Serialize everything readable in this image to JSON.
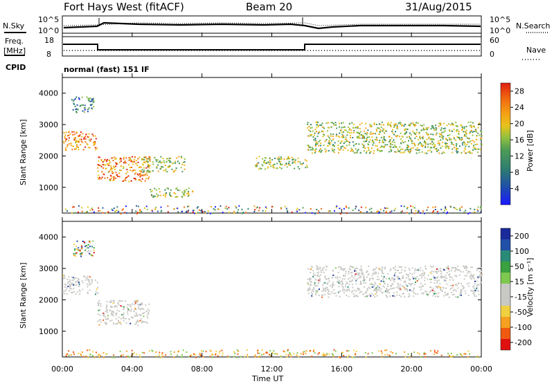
{
  "header": {
    "radar_title": "Fort Hays West (fitACF)",
    "beam": "Beam 20",
    "date": "31/Aug/2015"
  },
  "strip_panels": {
    "nsky_label": "N.Sky",
    "nsky_ticks": [
      "10^5",
      "10^0"
    ],
    "nsearch_label": "N.Search",
    "nsearch_ticks": [
      "10^5",
      "10^0"
    ],
    "freq_label": "Freq.",
    "freq_unit": "[MHz]",
    "freq_ticks": [
      "18",
      "8"
    ],
    "nave_label": "Nave",
    "nave_ticks": [
      "60",
      "0"
    ],
    "cpid_label": "CPID",
    "cpid_value": "normal (fast) 151 IF"
  },
  "chart_data": [
    {
      "type": "heatmap",
      "name": "power",
      "ylabel": "Slant Range [km]",
      "yticks": [
        "4000",
        "3000",
        "2000",
        "1000"
      ],
      "ylim": [
        180,
        4500
      ],
      "colorbar": {
        "label": "Power [dB]",
        "ticks": [
          "28",
          "24",
          "20",
          "16",
          "12",
          "8",
          "4"
        ],
        "range": [
          0,
          30
        ],
        "colors": [
          "#1a1aff",
          "#1f4fa8",
          "#2f7f6f",
          "#4d9b55",
          "#90c040",
          "#e8c21a",
          "#f5a015",
          "#f06a10",
          "#e02010"
        ]
      },
      "regions": [
        {
          "t": [
            0,
            2
          ],
          "r": [
            2200,
            2800
          ],
          "level": "high"
        },
        {
          "t": [
            2,
            5
          ],
          "r": [
            1200,
            2000
          ],
          "level": "high"
        },
        {
          "t": [
            0.5,
            1.8
          ],
          "r": [
            3400,
            3900
          ],
          "level": "low"
        },
        {
          "t": [
            4.5,
            7
          ],
          "r": [
            1500,
            2000
          ],
          "level": "mid"
        },
        {
          "t": [
            5,
            7.5
          ],
          "r": [
            700,
            1000
          ],
          "level": "mid"
        },
        {
          "t": [
            14,
            24
          ],
          "r": [
            2100,
            3100
          ],
          "level": "mid"
        },
        {
          "t": [
            11,
            14
          ],
          "r": [
            1600,
            2000
          ],
          "level": "mid"
        }
      ]
    },
    {
      "type": "heatmap",
      "name": "velocity",
      "ylabel": "Slant Range [km]",
      "yticks": [
        "4000",
        "3000",
        "2000",
        "1000"
      ],
      "ylim": [
        180,
        4500
      ],
      "colorbar": {
        "label": "Velocity [m s⁻¹]",
        "ticks": [
          "200",
          "100",
          "50",
          "15",
          "-15",
          "-50",
          "-100",
          "-200"
        ],
        "range": [
          -250,
          250
        ],
        "colors": [
          "#e01010",
          "#f05a10",
          "#f5a020",
          "#f0d040",
          "#c8c8c4",
          "#c8c8c4",
          "#7ec850",
          "#3aa040",
          "#2a8a78",
          "#2050a8",
          "#1a2a9a"
        ]
      },
      "regions": [
        {
          "t": [
            0,
            2
          ],
          "r": [
            2200,
            2800
          ],
          "level": "ground"
        },
        {
          "t": [
            2,
            5
          ],
          "r": [
            1200,
            2000
          ],
          "level": "ground"
        },
        {
          "t": [
            14,
            24
          ],
          "r": [
            2100,
            3100
          ],
          "level": "ground"
        },
        {
          "t": [
            0.5,
            1.8
          ],
          "r": [
            3400,
            3900
          ],
          "level": "mixed"
        }
      ]
    }
  ],
  "xaxis": {
    "label": "Time UT",
    "ticks": [
      "00:00",
      "04:00",
      "08:00",
      "12:00",
      "16:00",
      "20:00",
      "00:00"
    ],
    "range_hours": [
      0,
      24
    ]
  }
}
